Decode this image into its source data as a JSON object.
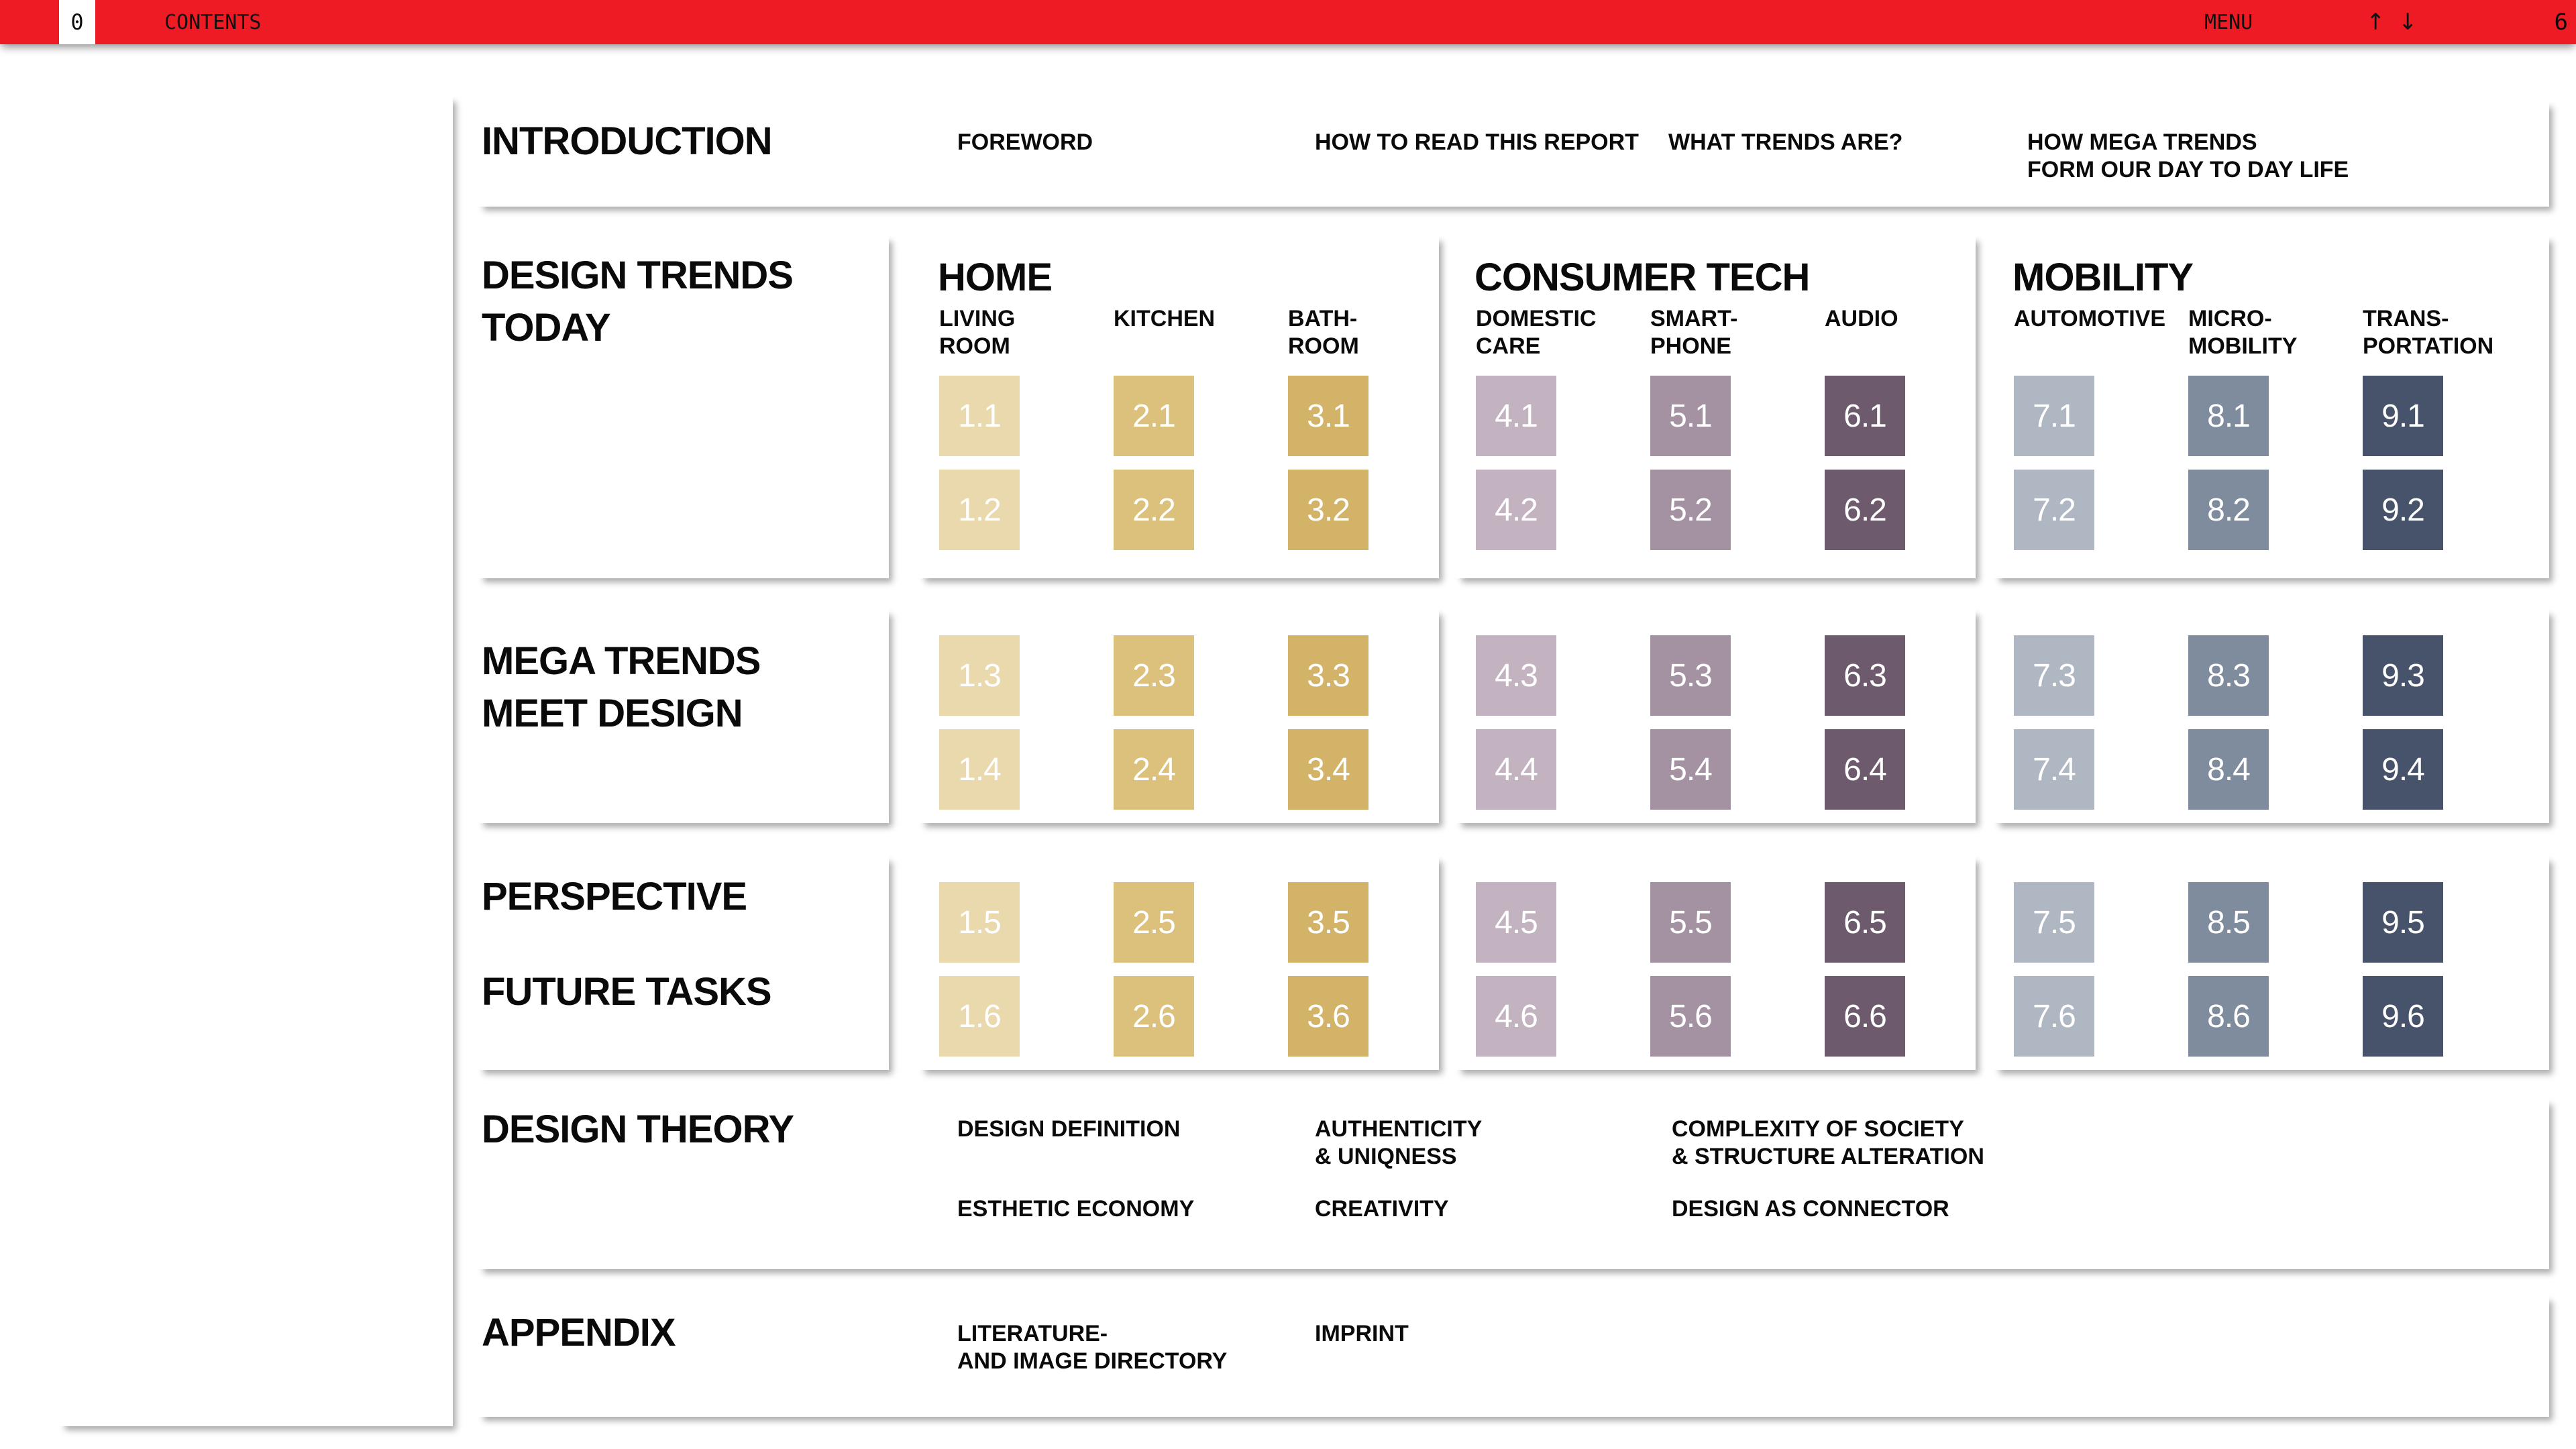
{
  "header": {
    "page_badge": "0",
    "title": "CONTENTS",
    "menu_label": "MENU",
    "up_arrow": "↑",
    "down_arrow": "↓",
    "page_number": "6",
    "bar_color": "#ee1b24"
  },
  "intro": {
    "title": "INTRODUCTION",
    "items": [
      "FOREWORD",
      "HOW TO READ THIS REPORT",
      "WHAT TRENDS ARE?",
      "HOW MEGA TRENDS\nFORM OUR DAY TO DAY LIFE"
    ]
  },
  "row_titles": {
    "trends_today": "DESIGN TRENDS\nTODAY",
    "mega_trends": "MEGA TRENDS\nMEET DESIGN",
    "perspective": "PERSPECTIVE",
    "future_tasks": "FUTURE TASKS"
  },
  "tile_text_color": "#ffffff",
  "categories": [
    {
      "name": "HOME",
      "columns": [
        {
          "label": "LIVING\nROOM",
          "color": "#e9d9ac",
          "tiles": [
            "1.1",
            "1.2",
            "1.3",
            "1.4",
            "1.5",
            "1.6"
          ]
        },
        {
          "label": "KITCHEN",
          "color": "#dcc17c",
          "tiles": [
            "2.1",
            "2.2",
            "2.3",
            "2.4",
            "2.5",
            "2.6"
          ]
        },
        {
          "label": "BATH-\nROOM",
          "color": "#d3b368",
          "tiles": [
            "3.1",
            "3.2",
            "3.3",
            "3.4",
            "3.5",
            "3.6"
          ]
        }
      ]
    },
    {
      "name": "CONSUMER TECH",
      "columns": [
        {
          "label": "DOMESTIC\nCARE",
          "color": "#c3b3c0",
          "tiles": [
            "4.1",
            "4.2",
            "4.3",
            "4.4",
            "4.5",
            "4.6"
          ]
        },
        {
          "label": "SMART-\nPHONE",
          "color": "#a491a2",
          "tiles": [
            "5.1",
            "5.2",
            "5.3",
            "5.4",
            "5.5",
            "5.6"
          ]
        },
        {
          "label": "AUDIO",
          "color": "#6d5a6d",
          "tiles": [
            "6.1",
            "6.2",
            "6.3",
            "6.4",
            "6.5",
            "6.6"
          ]
        }
      ]
    },
    {
      "name": "MOBILITY",
      "columns": [
        {
          "label": "AUTOMOTIVE",
          "color": "#aeb7c2",
          "tiles": [
            "7.1",
            "7.2",
            "7.3",
            "7.4",
            "7.5",
            "7.6"
          ]
        },
        {
          "label": "MICRO-\nMOBILITY",
          "color": "#7e8c9e",
          "tiles": [
            "8.1",
            "8.2",
            "8.3",
            "8.4",
            "8.5",
            "8.6"
          ]
        },
        {
          "label": "TRANS-\nPORTATION",
          "color": "#46536a",
          "tiles": [
            "9.1",
            "9.2",
            "9.3",
            "9.4",
            "9.5",
            "9.6"
          ]
        }
      ]
    }
  ],
  "design_theory": {
    "title": "DESIGN THEORY",
    "row1": [
      "DESIGN DEFINITION",
      "AUTHENTICITY\n& UNIQNESS",
      "COMPLEXITY OF SOCIETY\n& STRUCTURE ALTERATION"
    ],
    "row2": [
      "ESTHETIC ECONOMY",
      "CREATIVITY",
      "DESIGN AS CONNECTOR"
    ]
  },
  "appendix": {
    "title": "APPENDIX",
    "items": [
      "LITERATURE-\nAND IMAGE DIRECTORY",
      "IMPRINT"
    ]
  }
}
